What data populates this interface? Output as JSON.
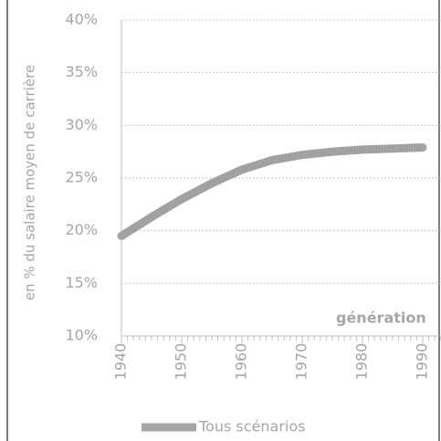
{
  "chart_data": {
    "type": "line",
    "y_label": "en % du salaire moyen de carrière",
    "annotation": "génération",
    "x": [
      1940,
      1945,
      1950,
      1955,
      1960,
      1965,
      1970,
      1975,
      1980,
      1985,
      1990
    ],
    "series": [
      {
        "name": "Tous scénarios",
        "color": "#a6a6a6",
        "values": [
          19.5,
          21.3,
          23.0,
          24.5,
          25.8,
          26.7,
          27.2,
          27.5,
          27.7,
          27.8,
          27.9
        ]
      }
    ],
    "xlim": [
      1940,
      1990
    ],
    "xticks": [
      1940,
      1950,
      1960,
      1970,
      1980,
      1990
    ],
    "ylim": [
      10,
      40
    ],
    "yticks": [
      {
        "value": 10,
        "label": "10%"
      },
      {
        "value": 15,
        "label": "15%"
      },
      {
        "value": 20,
        "label": "20%"
      },
      {
        "value": 25,
        "label": "25%"
      },
      {
        "value": 30,
        "label": "30%"
      },
      {
        "value": 35,
        "label": "35%"
      },
      {
        "value": 40,
        "label": "40%"
      }
    ],
    "grid": true
  }
}
